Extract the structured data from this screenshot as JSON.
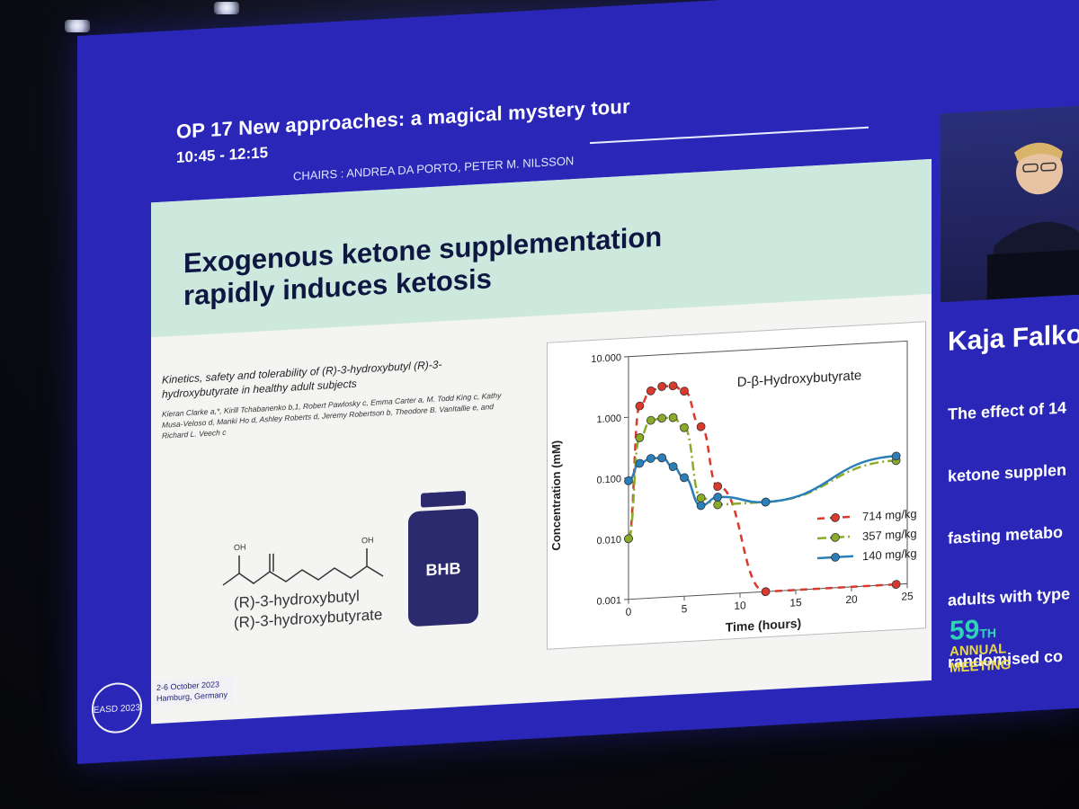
{
  "session": {
    "time": "10:45 - 12:15",
    "title": "OP 17 New approaches: a magical mystery tour",
    "chairs": "CHAIRS : ANDREA DA PORTO, PETER M. NILSSON"
  },
  "slide": {
    "title": "Exogenous ketone supplementation rapidly induces ketosis",
    "paper_title": "Kinetics, safety and tolerability of (R)-3-hydroxybutyl (R)-3-hydroxybutyrate in healthy adult subjects",
    "paper_authors": "Kieran Clarke a,*, Kirill Tchabanenko b,1, Robert Pawlosky c, Emma Carter a, M. Todd King c, Kathy Musa-Veloso d, Manki Ho d, Ashley Roberts d, Jeremy Robertson b, Theodore B. VanItallie e, and Richard L. Veech c",
    "compound_line1": "(R)-3-hydroxybutyl",
    "compound_line2": "(R)-3-hydroxybutyrate",
    "bottle_label": "BHB",
    "molecule_oh_labels": [
      "OH",
      "OH"
    ]
  },
  "chart_data": {
    "type": "line",
    "title": "D-β-Hydroxybutyrate",
    "xlabel": "Time (hours)",
    "ylabel": "Concentration (mM)",
    "xlim": [
      0,
      25
    ],
    "ylim": [
      0.001,
      10
    ],
    "y_scale": "log",
    "x_ticks": [
      "0",
      "5",
      "10",
      "15",
      "20",
      "25"
    ],
    "y_ticks": [
      "0.001",
      "0.010",
      "0.100",
      "1.000",
      "10.000"
    ],
    "legend_position": "bottom-right",
    "series": [
      {
        "name": "714 mg/kg",
        "color": "#d93a2b",
        "dash": "dashed",
        "x": [
          0,
          1,
          2,
          3,
          4,
          5,
          6.5,
          8,
          12.3,
          24
        ],
        "y": [
          0.01,
          1.5,
          2.6,
          3.0,
          3.0,
          2.4,
          0.6,
          0.06,
          0.001,
          0.001
        ]
      },
      {
        "name": "357 mg/kg",
        "color": "#8aaa2a",
        "dash": "dash-dot",
        "x": [
          0,
          1,
          2,
          3,
          4,
          5,
          6.5,
          8,
          12.3,
          24
        ],
        "y": [
          0.01,
          0.45,
          0.85,
          0.9,
          0.9,
          0.6,
          0.04,
          0.03,
          0.03,
          0.11
        ]
      },
      {
        "name": "140 mg/kg",
        "color": "#2a7fb8",
        "dash": "solid",
        "x": [
          0,
          1,
          2,
          3,
          4,
          5,
          6.5,
          8,
          12.3,
          24
        ],
        "y": [
          0.09,
          0.17,
          0.2,
          0.2,
          0.14,
          0.09,
          0.03,
          0.04,
          0.03,
          0.13
        ]
      }
    ]
  },
  "speaker": {
    "name": "Kaja Falko",
    "talk_title_lines": [
      "The effect of 14",
      "ketone supplen",
      "fasting metabo",
      "adults with type",
      "randomised co"
    ]
  },
  "footer": {
    "logo_text": "EASD 2023",
    "dates": "2-6 October 2023",
    "location": "Hamburg, Germany",
    "meeting_number": "59",
    "meeting_suffix": "TH",
    "meeting_line1": "ANNUAL",
    "meeting_line2": "MEETING"
  }
}
